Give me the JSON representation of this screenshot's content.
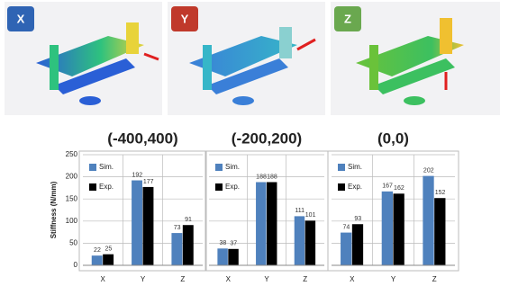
{
  "panels": [
    "X",
    "Y",
    "Z"
  ],
  "chart_data": [
    {
      "type": "bar",
      "title": "(-400,400)",
      "y_label": "Stiffness (N/mm)",
      "categories": [
        "X",
        "Y",
        "Z"
      ],
      "series": [
        {
          "name": "Sim.",
          "color": "#4f81bd",
          "values": [
            22,
            192,
            73
          ]
        },
        {
          "name": "Exp.",
          "color": "#000000",
          "values": [
            25,
            177,
            91
          ]
        }
      ],
      "ylim": [
        0,
        250
      ],
      "yticks": [
        0,
        50,
        100,
        150,
        200,
        250
      ],
      "grid": true
    },
    {
      "type": "bar",
      "title": "(-200,200)",
      "categories": [
        "X",
        "Y",
        "Z"
      ],
      "series": [
        {
          "name": "Sim.",
          "color": "#4f81bd",
          "values": [
            38,
            188,
            111
          ]
        },
        {
          "name": "Exp.",
          "color": "#000000",
          "values": [
            37,
            188,
            101
          ]
        }
      ],
      "ylim": [
        0,
        250
      ],
      "yticks": [
        0,
        50,
        100,
        150,
        200,
        250
      ],
      "grid": true
    },
    {
      "type": "bar",
      "title": "(0,0)",
      "categories": [
        "X",
        "Y",
        "Z"
      ],
      "series": [
        {
          "name": "Sim.",
          "color": "#4f81bd",
          "values": [
            74,
            167,
            202
          ]
        },
        {
          "name": "Exp.",
          "color": "#000000",
          "values": [
            93,
            162,
            152
          ]
        }
      ],
      "ylim": [
        0,
        250
      ],
      "yticks": [
        0,
        50,
        100,
        150,
        200,
        250
      ],
      "grid": true
    }
  ]
}
